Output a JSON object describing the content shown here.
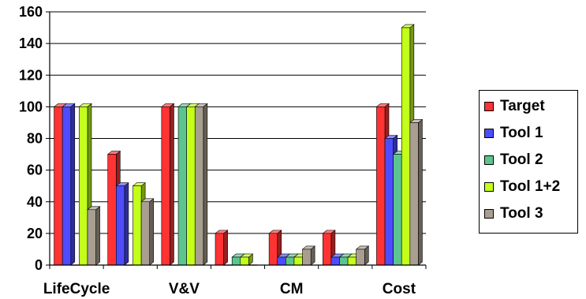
{
  "chart_data": {
    "type": "bar",
    "categories": [
      "LifeCycle",
      "",
      "V&V",
      "",
      "CM",
      "",
      "Cost"
    ],
    "series": [
      {
        "name": "Target",
        "color": "#FF3333",
        "values": [
          100,
          70,
          100,
          20,
          20,
          20,
          100
        ]
      },
      {
        "name": "Tool 1",
        "color": "#4D4DFF",
        "values": [
          100,
          50,
          0,
          0,
          5,
          5,
          80
        ]
      },
      {
        "name": "Tool 2",
        "color": "#5CC58F",
        "values": [
          0,
          0,
          100,
          5,
          5,
          5,
          70
        ]
      },
      {
        "name": "Tool 1+2",
        "color": "#C3FF1A",
        "values": [
          100,
          50,
          100,
          5,
          5,
          5,
          150
        ]
      },
      {
        "name": "Tool 3",
        "color": "#A89F90",
        "values": [
          35,
          40,
          100,
          0,
          10,
          10,
          90
        ]
      }
    ],
    "yticks": [
      "0",
      "20",
      "40",
      "60",
      "80",
      "100",
      "120",
      "140",
      "160"
    ],
    "ylim": [
      0,
      160
    ],
    "grid": true,
    "legend_position": "right",
    "title": "",
    "xlabel": "",
    "ylabel": ""
  }
}
